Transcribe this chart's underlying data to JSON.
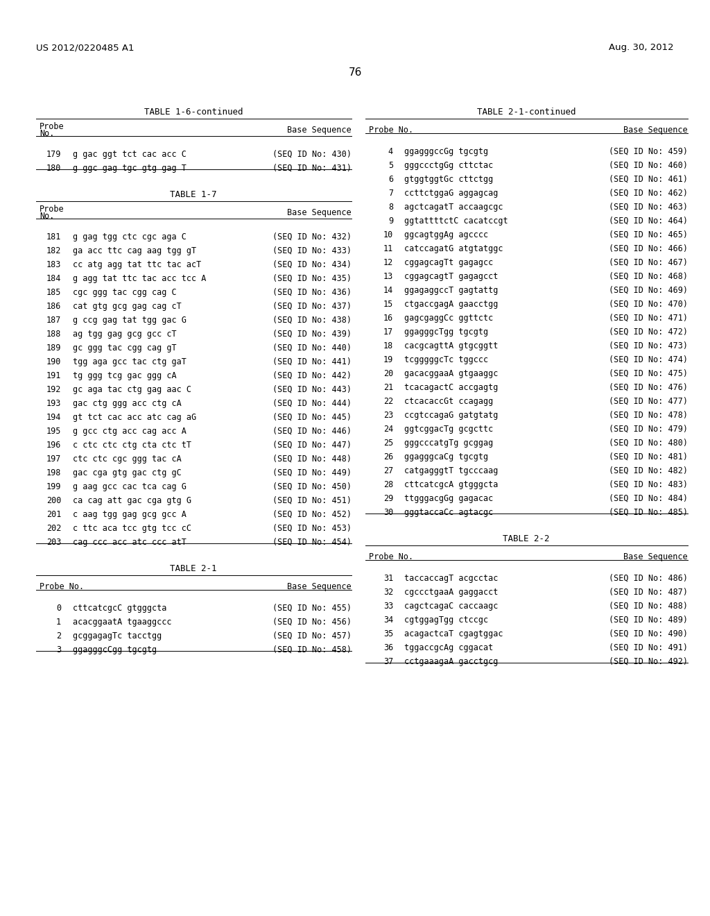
{
  "header_left": "US 2012/0220485 A1",
  "header_right": "Aug. 30, 2012",
  "page_number": "76",
  "table1_6_continued": {
    "title": "TABLE 1-6-continued",
    "rows": [
      [
        "179",
        "g gac ggt tct cac acc C",
        "(SEQ ID No: 430)"
      ],
      [
        "180",
        "g ggc gag tgc gtg gag T",
        "(SEQ ID No: 431)"
      ]
    ]
  },
  "table1_7": {
    "title": "TABLE 1-7",
    "rows": [
      [
        "181",
        "g gag tgg ctc cgc aga C",
        "(SEQ ID No: 432)"
      ],
      [
        "182",
        "ga acc ttc cag aag tgg gT",
        "(SEQ ID No: 433)"
      ],
      [
        "183",
        "cc atg agg tat ttc tac acT",
        "(SEQ ID No: 434)"
      ],
      [
        "184",
        "g agg tat ttc tac acc tcc A",
        "(SEQ ID No: 435)"
      ],
      [
        "185",
        "cgc ggg tac cgg cag C",
        "(SEQ ID No: 436)"
      ],
      [
        "186",
        "cat gtg gcg gag cag cT",
        "(SEQ ID No: 437)"
      ],
      [
        "187",
        "g ccg gag tat tgg gac G",
        "(SEQ ID No: 438)"
      ],
      [
        "188",
        "ag tgg gag gcg gcc cT",
        "(SEQ ID No: 439)"
      ],
      [
        "189",
        "gc ggg tac cgg cag gT",
        "(SEQ ID No: 440)"
      ],
      [
        "190",
        "tgg aga gcc tac ctg gaT",
        "(SEQ ID No: 441)"
      ],
      [
        "191",
        "tg ggg tcg gac ggg cA",
        "(SEQ ID No: 442)"
      ],
      [
        "192",
        "gc aga tac ctg gag aac C",
        "(SEQ ID No: 443)"
      ],
      [
        "193",
        "gac ctg ggg acc ctg cA",
        "(SEQ ID No: 444)"
      ],
      [
        "194",
        "gt tct cac acc atc cag aG",
        "(SEQ ID No: 445)"
      ],
      [
        "195",
        "g gcc ctg acc cag acc A",
        "(SEQ ID No: 446)"
      ],
      [
        "196",
        "c ctc ctc ctg cta ctc tT",
        "(SEQ ID No: 447)"
      ],
      [
        "197",
        "ctc ctc cgc ggg tac cA",
        "(SEQ ID No: 448)"
      ],
      [
        "198",
        "gac cga gtg gac ctg gC",
        "(SEQ ID No: 449)"
      ],
      [
        "199",
        "g aag gcc cac tca cag G",
        "(SEQ ID No: 450)"
      ],
      [
        "200",
        "ca cag att gac cga gtg G",
        "(SEQ ID No: 451)"
      ],
      [
        "201",
        "c aag tgg gag gcg gcc A",
        "(SEQ ID No: 452)"
      ],
      [
        "202",
        "c ttc aca tcc gtg tcc cC",
        "(SEQ ID No: 453)"
      ],
      [
        "203",
        "cag ccc acc atc ccc atT",
        "(SEQ ID No: 454)"
      ]
    ]
  },
  "table2_1": {
    "title": "TABLE 2-1",
    "rows": [
      [
        "0",
        "cttcatcgcC gtgggcta",
        "(SEQ ID No: 455)"
      ],
      [
        "1",
        "acacggaatA tgaaggccc",
        "(SEQ ID No: 456)"
      ],
      [
        "2",
        "gcggagagTc tacctgg",
        "(SEQ ID No: 457)"
      ],
      [
        "3",
        "ggagggcCgg tgcgtg",
        "(SEQ ID No: 458)"
      ]
    ]
  },
  "table2_1_cont": {
    "title": "TABLE 2-1-continued",
    "rows": [
      [
        "4",
        "ggagggccGg tgcgtg",
        "(SEQ ID No: 459)"
      ],
      [
        "5",
        "gggccctgGg cttctac",
        "(SEQ ID No: 460)"
      ],
      [
        "6",
        "gtggtggtGc cttctgg",
        "(SEQ ID No: 461)"
      ],
      [
        "7",
        "ccttctggaG aggagcag",
        "(SEQ ID No: 462)"
      ],
      [
        "8",
        "agctcagatT accaagcgc",
        "(SEQ ID No: 463)"
      ],
      [
        "9",
        "ggtattttctC cacatccgt",
        "(SEQ ID No: 464)"
      ],
      [
        "10",
        "ggcagtggAg agcccc",
        "(SEQ ID No: 465)"
      ],
      [
        "11",
        "catccagatG atgtatggc",
        "(SEQ ID No: 466)"
      ],
      [
        "12",
        "cggagcagTt gagagcc",
        "(SEQ ID No: 467)"
      ],
      [
        "13",
        "cggagcagtT gagagcct",
        "(SEQ ID No: 468)"
      ],
      [
        "14",
        "ggagaggccT gagtattg",
        "(SEQ ID No: 469)"
      ],
      [
        "15",
        "ctgaccgagA gaacctgg",
        "(SEQ ID No: 470)"
      ],
      [
        "16",
        "gagcgaggCc ggttctc",
        "(SEQ ID No: 471)"
      ],
      [
        "17",
        "ggagggcTgg tgcgtg",
        "(SEQ ID No: 472)"
      ],
      [
        "18",
        "cacgcagttA gtgcggtt",
        "(SEQ ID No: 473)"
      ],
      [
        "19",
        "tcgggggcTc tggccc",
        "(SEQ ID No: 474)"
      ],
      [
        "20",
        "gacacggaaA gtgaaggc",
        "(SEQ ID No: 475)"
      ],
      [
        "21",
        "tcacagactC accgagtg",
        "(SEQ ID No: 476)"
      ],
      [
        "22",
        "ctcacaccGt ccagagg",
        "(SEQ ID No: 477)"
      ],
      [
        "23",
        "ccgtccagaG gatgtatg",
        "(SEQ ID No: 478)"
      ],
      [
        "24",
        "ggtcggacTg gcgcttc",
        "(SEQ ID No: 479)"
      ],
      [
        "25",
        "gggcccatgTg gcggag",
        "(SEQ ID No: 480)"
      ],
      [
        "26",
        "ggagggcaCg tgcgtg",
        "(SEQ ID No: 481)"
      ],
      [
        "27",
        "catgagggtT tgcccaag",
        "(SEQ ID No: 482)"
      ],
      [
        "28",
        "cttcatcgcA gtgggcta",
        "(SEQ ID No: 483)"
      ],
      [
        "29",
        "ttgggacgGg gagacac",
        "(SEQ ID No: 484)"
      ],
      [
        "30",
        "gggtaccaCc agtacgc",
        "(SEQ ID No: 485)"
      ]
    ]
  },
  "table2_2": {
    "title": "TABLE 2-2",
    "rows": [
      [
        "31",
        "taccaccagT acgcctac",
        "(SEQ ID No: 486)"
      ],
      [
        "32",
        "cgccctgaaA gaggacct",
        "(SEQ ID No: 487)"
      ],
      [
        "33",
        "cagctcagaC caccaagc",
        "(SEQ ID No: 488)"
      ],
      [
        "34",
        "cgtggagTgg ctccgc",
        "(SEQ ID No: 489)"
      ],
      [
        "35",
        "acagactcaT cgagtggac",
        "(SEQ ID No: 490)"
      ],
      [
        "36",
        "tggaccgcAg cggacat",
        "(SEQ ID No: 491)"
      ],
      [
        "37",
        "cctgaaagaA gacctgcg",
        "(SEQ ID No: 492)"
      ]
    ]
  }
}
